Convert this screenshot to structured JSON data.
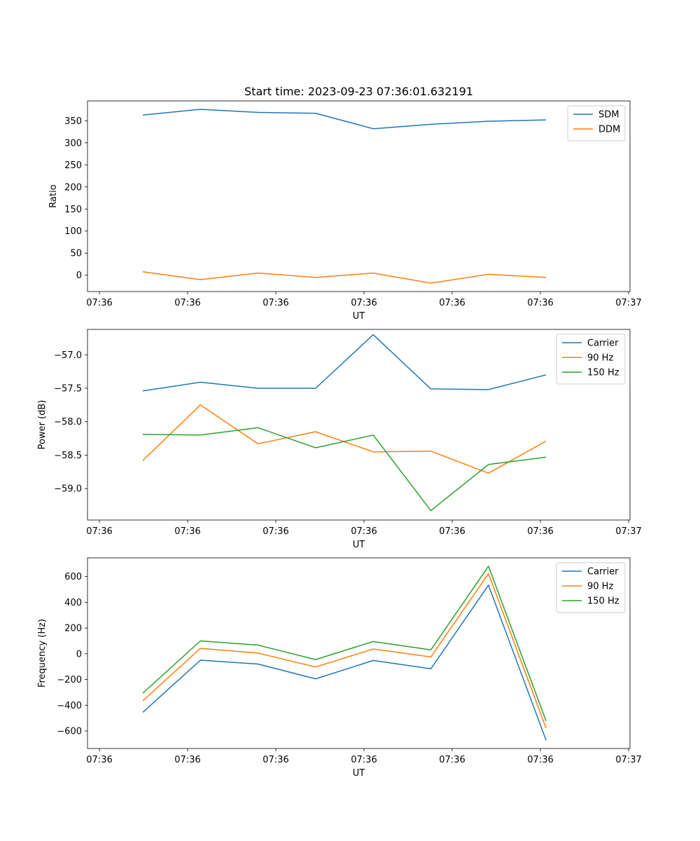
{
  "title": "Start time: 2023-09-23 07:36:01.632191",
  "chart_data": [
    {
      "type": "line",
      "xlabel": "UT",
      "ylabel": "Ratio",
      "x_tick_labels": [
        "07:36",
        "07:36",
        "07:36",
        "07:36",
        "07:36",
        "07:36",
        "07:37"
      ],
      "y_ticks": [
        0,
        50,
        100,
        150,
        200,
        250,
        300,
        350
      ],
      "y_tick_labels": [
        "0",
        "50",
        "100",
        "150",
        "200",
        "250",
        "300",
        "350"
      ],
      "ylim": [
        -37,
        395
      ],
      "legend_position": "top-right",
      "series": [
        {
          "name": "SDM",
          "color": "#1f77b4",
          "values": [
            363,
            376,
            369,
            367,
            332,
            342,
            349,
            352
          ]
        },
        {
          "name": "DDM",
          "color": "#ff7f0e",
          "values": [
            8,
            -10,
            5,
            -5,
            5,
            -18,
            2,
            -5
          ]
        }
      ]
    },
    {
      "type": "line",
      "xlabel": "UT",
      "ylabel": "Power (dB)",
      "x_tick_labels": [
        "07:36",
        "07:36",
        "07:36",
        "07:36",
        "07:36",
        "07:36",
        "07:37"
      ],
      "y_ticks": [
        -59.0,
        -58.5,
        -58.0,
        -57.5,
        -57.0
      ],
      "y_tick_labels": [
        "−59.0",
        "−58.5",
        "−58.0",
        "−57.5",
        "−57.0"
      ],
      "ylim": [
        -59.47,
        -56.62
      ],
      "legend_position": "top-right",
      "series": [
        {
          "name": "Carrier",
          "color": "#1f77b4",
          "values": [
            -57.54,
            -57.41,
            -57.5,
            -57.5,
            -56.7,
            -57.51,
            -57.52,
            -57.3
          ]
        },
        {
          "name": "90 Hz",
          "color": "#ff7f0e",
          "values": [
            -58.58,
            -57.75,
            -58.33,
            -58.15,
            -58.45,
            -58.44,
            -58.77,
            -58.29
          ]
        },
        {
          "name": "150 Hz",
          "color": "#2ca02c",
          "values": [
            -58.19,
            -58.2,
            -58.09,
            -58.39,
            -58.2,
            -59.33,
            -58.64,
            -58.53
          ]
        }
      ]
    },
    {
      "type": "line",
      "xlabel": "UT",
      "ylabel": "Frequency (Hz)",
      "x_tick_labels": [
        "07:36",
        "07:36",
        "07:36",
        "07:36",
        "07:36",
        "07:36",
        "07:37"
      ],
      "y_ticks": [
        -600,
        -400,
        -200,
        0,
        200,
        400,
        600
      ],
      "y_tick_labels": [
        "−600",
        "−400",
        "−200",
        "0",
        "200",
        "400",
        "600"
      ],
      "ylim": [
        -736,
        745
      ],
      "legend_position": "top-right",
      "series": [
        {
          "name": "Carrier",
          "color": "#1f77b4",
          "values": [
            -455,
            -50,
            -80,
            -195,
            -52,
            -117,
            533,
            -672
          ]
        },
        {
          "name": "90 Hz",
          "color": "#ff7f0e",
          "values": [
            -365,
            42,
            5,
            -103,
            37,
            -25,
            622,
            -578
          ]
        },
        {
          "name": "150 Hz",
          "color": "#2ca02c",
          "values": [
            -306,
            100,
            67,
            -45,
            95,
            30,
            680,
            -522
          ]
        }
      ]
    }
  ]
}
